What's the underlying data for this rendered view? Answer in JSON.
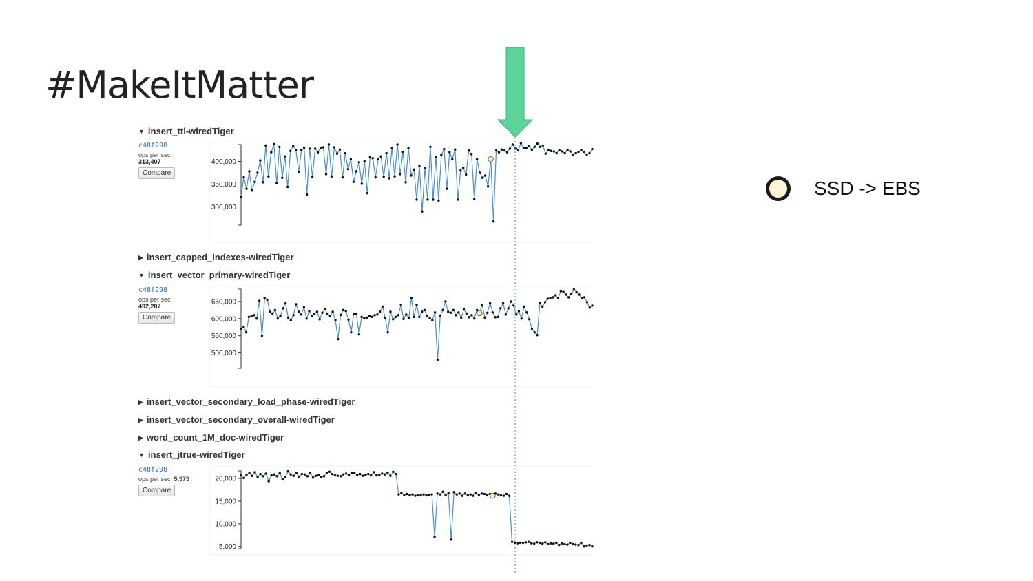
{
  "slide": {
    "title": "#MakeItMatter"
  },
  "legend": {
    "text": "SSD -> EBS",
    "marker_color": "#fff5d6"
  },
  "colors": {
    "line": "#4a8fc7",
    "point": "#111111",
    "arrow": "#5dd39a",
    "marker": "#f5ecbf"
  },
  "sections": [
    {
      "title": "insert_ttl-wiredTiger",
      "expanded": true
    },
    {
      "title": "insert_capped_indexes-wiredTiger",
      "expanded": false
    },
    {
      "title": "insert_vector_primary-wiredTiger",
      "expanded": true
    },
    {
      "title": "insert_vector_secondary_load_phase-wiredTiger",
      "expanded": false
    },
    {
      "title": "insert_vector_secondary_overall-wiredTiger",
      "expanded": false
    },
    {
      "title": "word_count_1M_doc-wiredTiger",
      "expanded": false
    },
    {
      "title": "insert_jtrue-wiredTiger",
      "expanded": true
    }
  ],
  "chart_data": [
    {
      "type": "line",
      "title": "insert_ttl-wiredTiger",
      "commit": "c48f298",
      "metric_label": "ops per sec:",
      "metric_value": "313,407",
      "button": "Compare",
      "ylim": [
        260000,
        440000
      ],
      "yticks": [
        300000,
        350000,
        400000
      ],
      "ytick_labels": [
        "300,000",
        "350,000",
        "400,000"
      ],
      "marker_index": 91,
      "values": [
        322000,
        365000,
        340000,
        378000,
        336000,
        355000,
        375000,
        402000,
        354000,
        435000,
        367000,
        420000,
        438000,
        352000,
        432000,
        364000,
        411000,
        344000,
        423000,
        434000,
        425000,
        377000,
        425000,
        430000,
        327000,
        428000,
        366000,
        428000,
        420000,
        430000,
        431000,
        372000,
        437000,
        367000,
        431000,
        417000,
        426000,
        365000,
        418000,
        383000,
        405000,
        355000,
        378000,
        398000,
        351000,
        400000,
        330000,
        409000,
        407000,
        365000,
        405000,
        411000,
        366000,
        418000,
        363000,
        430000,
        367000,
        437000,
        372000,
        421000,
        354000,
        429000,
        369000,
        382000,
        316000,
        390000,
        290000,
        385000,
        316000,
        432000,
        316000,
        410000,
        314000,
        414000,
        427000,
        340000,
        420000,
        405000,
        426000,
        316000,
        380000,
        386000,
        371000,
        424000,
        416000,
        317000,
        405000,
        375000,
        364000,
        369000,
        345000,
        405000,
        268000,
        424000,
        420000,
        426000,
        424000,
        420000,
        428000,
        437000,
        428000,
        424000,
        440000,
        430000,
        430000,
        434000,
        425000,
        432000,
        439000,
        432000,
        435000,
        417000,
        425000,
        423000,
        422000,
        418000,
        425000,
        422000,
        418000,
        425000,
        422000,
        415000,
        418000,
        421000,
        425000,
        421000,
        415000,
        418000,
        427000
      ]
    },
    {
      "type": "line",
      "title": "insert_vector_primary-wiredTiger",
      "commit": "c48f298",
      "metric_label": "ops per sec:",
      "metric_value": "492,207",
      "button": "Compare",
      "ylim": [
        455000,
        690000
      ],
      "yticks": [
        500000,
        550000,
        600000,
        650000
      ],
      "ytick_labels": [
        "500,000",
        "550,000",
        "600,000",
        "650,000"
      ],
      "marker_index": 91,
      "values": [
        570000,
        575000,
        560000,
        605000,
        607000,
        610000,
        600000,
        652000,
        550000,
        660000,
        655000,
        620000,
        615000,
        625000,
        600000,
        608000,
        630000,
        645000,
        603000,
        595000,
        610000,
        642000,
        620000,
        612000,
        633000,
        600000,
        622000,
        608000,
        613000,
        620000,
        598000,
        617000,
        628000,
        613000,
        607000,
        620000,
        595000,
        540000,
        611000,
        625000,
        622000,
        597000,
        560000,
        614000,
        613000,
        554000,
        605000,
        601000,
        603000,
        608000,
        605000,
        610000,
        612000,
        620000,
        635000,
        602000,
        560000,
        620000,
        598000,
        605000,
        610000,
        640000,
        599000,
        612000,
        602000,
        660000,
        605000,
        640000,
        605000,
        620000,
        625000,
        608000,
        602000,
        595000,
        618000,
        480000,
        609000,
        625000,
        650000,
        620000,
        617000,
        625000,
        610000,
        618000,
        603000,
        627000,
        615000,
        604000,
        610000,
        600000,
        625000,
        616000,
        640000,
        603000,
        617000,
        645000,
        618000,
        604000,
        605000,
        630000,
        645000,
        612000,
        630000,
        650000,
        638000,
        612000,
        622000,
        600000,
        635000,
        618000,
        598000,
        570000,
        560000,
        552000,
        645000,
        635000,
        648000,
        658000,
        660000,
        662000,
        668000,
        660000,
        680000,
        678000,
        670000,
        662000,
        672000,
        685000,
        677000,
        670000,
        660000,
        662000,
        648000,
        632000,
        638000
      ]
    },
    {
      "type": "line",
      "title": "insert_jtrue-wiredTiger",
      "commit": "c48f298",
      "metric_label": "ops per sec:",
      "metric_value": "5,575",
      "button": "Compare",
      "ylim": [
        4500,
        22000
      ],
      "yticks": [
        5000,
        10000,
        15000,
        20000
      ],
      "ytick_labels": [
        "5,000",
        "10,000",
        "15,000",
        "20,000"
      ],
      "marker_index": 91,
      "values": [
        20700,
        20100,
        20800,
        21200,
        20600,
        21400,
        20300,
        21000,
        20500,
        21100,
        19400,
        20700,
        20900,
        20500,
        21200,
        19800,
        20300,
        21600,
        20900,
        20600,
        21200,
        20400,
        21000,
        20900,
        20500,
        21300,
        20200,
        20600,
        20800,
        20300,
        20500,
        21300,
        21500,
        21000,
        20700,
        20600,
        20500,
        20900,
        21100,
        20800,
        21300,
        21200,
        20800,
        21000,
        20600,
        20800,
        21000,
        20700,
        21400,
        20700,
        20800,
        21100,
        20900,
        21300,
        20600,
        21500,
        21000,
        16500,
        16800,
        16400,
        16600,
        16300,
        16500,
        16200,
        16400,
        16300,
        16500,
        16300,
        16400,
        16500,
        7100,
        16700,
        16500,
        17100,
        16300,
        16800,
        6500,
        17000,
        16500,
        16700,
        16200,
        16700,
        16300,
        16500,
        16200,
        16800,
        16400,
        16700,
        16600,
        16300,
        16600,
        16200,
        16700,
        16500,
        16300,
        16200,
        16600,
        16200,
        6000,
        5800,
        5700,
        5800,
        5800,
        5900,
        6000,
        5700,
        5600,
        5900,
        5800,
        5600,
        5900,
        5500,
        5700,
        5600,
        5800,
        5300,
        5700,
        5500,
        5400,
        5800,
        5500,
        5400,
        5300,
        5800,
        5000,
        5200,
        5300,
        5000
      ]
    }
  ]
}
